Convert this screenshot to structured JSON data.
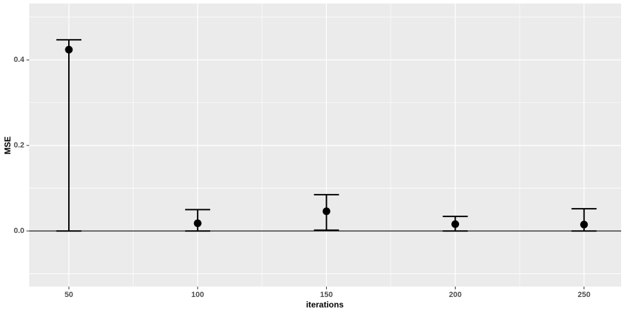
{
  "chart_data": {
    "type": "errorbar",
    "x_label": "iterations",
    "y_label": "MSE",
    "x": [
      50,
      100,
      150,
      200,
      250
    ],
    "values": [
      0.424,
      0.018,
      0.046,
      0.016,
      0.015
    ],
    "lower": [
      0.0,
      0.0,
      0.002,
      0.0,
      0.0
    ],
    "upper": [
      0.447,
      0.05,
      0.085,
      0.034,
      0.052
    ],
    "color": "#000000",
    "hline": 0,
    "xlim": [
      34.6,
      264.4
    ],
    "xticks": [
      50,
      100,
      150,
      200,
      250
    ],
    "ylim": [
      -0.13,
      0.532
    ],
    "yticks": [
      {
        "value": 0,
        "label": "0.0"
      },
      {
        "value": 0.2,
        "label": "0.2"
      },
      {
        "value": 0.4,
        "label": "0.4"
      }
    ],
    "grid": true
  }
}
